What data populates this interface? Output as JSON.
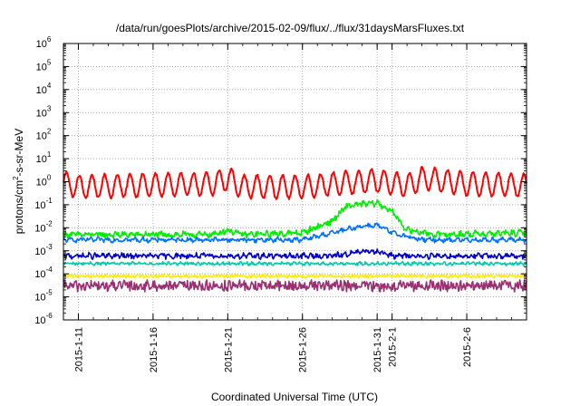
{
  "chart_data": {
    "type": "line",
    "title": "/data/run/goesPlots/archive/2015-02-09/flux/../flux/31daysMarsFluxes.txt",
    "xlabel": "Coordinated Universal Time (UTC)",
    "ylabel_parts": {
      "base": "protons/cm",
      "sup": "2",
      "rest": "-s-sr-MeV"
    },
    "y_scale": "log",
    "ylim": [
      1e-06,
      1000000.0
    ],
    "y_ticks": [
      {
        "base": "10",
        "exp": "6",
        "value": 1000000.0
      },
      {
        "base": "10",
        "exp": "5",
        "value": 100000.0
      },
      {
        "base": "10",
        "exp": "4",
        "value": 10000.0
      },
      {
        "base": "10",
        "exp": "3",
        "value": 1000.0
      },
      {
        "base": "10",
        "exp": "2",
        "value": 100.0
      },
      {
        "base": "10",
        "exp": "1",
        "value": 10.0
      },
      {
        "base": "10",
        "exp": "0",
        "value": 1.0
      },
      {
        "base": "10",
        "exp": "-1",
        "value": 0.1
      },
      {
        "base": "10",
        "exp": "-2",
        "value": 0.01
      },
      {
        "base": "10",
        "exp": "-3",
        "value": 0.001
      },
      {
        "base": "10",
        "exp": "-4",
        "value": 0.0001
      },
      {
        "base": "10",
        "exp": "-5",
        "value": 1e-05
      },
      {
        "base": "10",
        "exp": "-6",
        "value": 1e-06
      }
    ],
    "xlim": [
      "2015-01-10",
      "2015-02-10"
    ],
    "x_ticks": [
      "2015-1-11",
      "2015-1-16",
      "2015-1-21",
      "2015-1-26",
      "2015-1-31",
      "2015-2-1",
      "2015-2-6"
    ],
    "x_tick_dates": [
      "2015-01-11",
      "2015-01-16",
      "2015-01-21",
      "2015-01-26",
      "2015-01-31",
      "2015-02-01",
      "2015-02-06"
    ],
    "grid": true,
    "series": [
      {
        "color": "#ff0000",
        "anchors": [
          [
            "2015-01-10",
            0.9
          ],
          [
            "2015-01-11",
            0.6
          ],
          [
            "2015-01-15",
            0.7
          ],
          [
            "2015-01-20",
            0.8
          ],
          [
            "2015-01-21",
            1.4
          ],
          [
            "2015-01-22",
            0.6
          ],
          [
            "2015-01-26",
            0.6
          ],
          [
            "2015-01-29",
            0.9
          ],
          [
            "2015-01-31",
            1.1
          ],
          [
            "2015-02-02",
            0.7
          ],
          [
            "2015-02-03",
            1.4
          ],
          [
            "2015-02-06",
            0.8
          ],
          [
            "2015-02-10",
            0.7
          ]
        ],
        "amp": 0.5,
        "period": 0.85,
        "noise": 0.05
      },
      {
        "color": "#00ee00",
        "anchors": [
          [
            "2015-01-10",
            0.005
          ],
          [
            "2015-01-20",
            0.005
          ],
          [
            "2015-01-21",
            0.008
          ],
          [
            "2015-01-22",
            0.005
          ],
          [
            "2015-01-26",
            0.006
          ],
          [
            "2015-01-28",
            0.02
          ],
          [
            "2015-01-29",
            0.09
          ],
          [
            "2015-01-31",
            0.12
          ],
          [
            "2015-02-01",
            0.05
          ],
          [
            "2015-02-02",
            0.008
          ],
          [
            "2015-02-04",
            0.005
          ],
          [
            "2015-02-10",
            0.006
          ]
        ],
        "amp": 0.05,
        "period": 0.5,
        "noise": 0.12
      },
      {
        "color": "#0070ff",
        "anchors": [
          [
            "2015-01-10",
            0.003
          ],
          [
            "2015-01-26",
            0.003
          ],
          [
            "2015-01-28",
            0.006
          ],
          [
            "2015-01-30",
            0.012
          ],
          [
            "2015-01-31",
            0.013
          ],
          [
            "2015-02-01",
            0.006
          ],
          [
            "2015-02-03",
            0.003
          ],
          [
            "2015-02-10",
            0.003
          ]
        ],
        "amp": 0.05,
        "period": 0.6,
        "noise": 0.08
      },
      {
        "color": "#0000cc",
        "anchors": [
          [
            "2015-01-10",
            0.0006
          ],
          [
            "2015-01-28",
            0.0006
          ],
          [
            "2015-01-30",
            0.0009
          ],
          [
            "2015-01-31",
            0.001
          ],
          [
            "2015-02-01",
            0.0006
          ],
          [
            "2015-02-10",
            0.0006
          ]
        ],
        "amp": 0.05,
        "period": 0.45,
        "noise": 0.1
      },
      {
        "color": "#00ccaa",
        "anchors": [
          [
            "2015-01-10",
            0.00028
          ],
          [
            "2015-02-10",
            0.00028
          ]
        ],
        "amp": 0.03,
        "period": 0.4,
        "noise": 0.06
      },
      {
        "color": "#ffee00",
        "anchors": [
          [
            "2015-01-10",
            8e-05
          ],
          [
            "2015-02-10",
            8e-05
          ]
        ],
        "amp": 0.03,
        "period": 0.3,
        "noise": 0.06
      },
      {
        "color": "#9a3070",
        "anchors": [
          [
            "2015-01-10",
            3e-05
          ],
          [
            "2015-02-10",
            3e-05
          ]
        ],
        "amp": 0.05,
        "period": 0.25,
        "noise": 0.22
      }
    ]
  }
}
